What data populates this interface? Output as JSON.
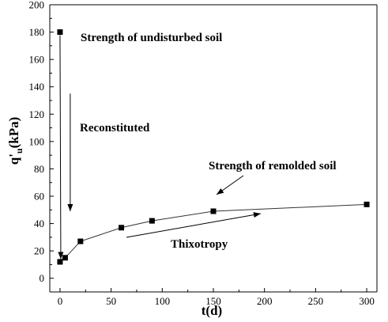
{
  "chart_data": {
    "type": "line",
    "title": "",
    "xlabel": "t(d)",
    "ylabel_main": "q'",
    "ylabel_sub": "u",
    "ylabel_unit": "(kPa)",
    "xlim": [
      -10,
      310
    ],
    "ylim": [
      -10,
      200
    ],
    "xticks": [
      0,
      50,
      100,
      150,
      200,
      250,
      300
    ],
    "yticks": [
      0,
      20,
      40,
      60,
      80,
      100,
      120,
      140,
      160,
      180,
      200
    ],
    "grid": false,
    "undisturbed_point": {
      "x": 0,
      "y": 180
    },
    "series": [
      {
        "x": [
          0,
          5,
          20,
          60,
          90,
          150,
          300
        ],
        "y": [
          12,
          15,
          27,
          37,
          42,
          49,
          54
        ]
      }
    ],
    "annotations": {
      "undisturbed": "Strength of undisturbed soil",
      "reconstituted": "Reconstituted",
      "remolded": "Strength of remolded soil",
      "thixotropy": "Thixotropy"
    }
  }
}
